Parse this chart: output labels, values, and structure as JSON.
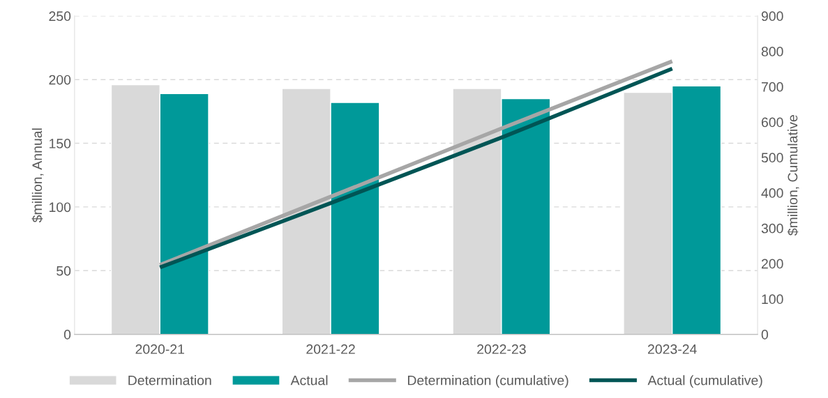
{
  "chart_data": {
    "type": "bar",
    "categories": [
      "2020-21",
      "2021-22",
      "2022-23",
      "2023-24"
    ],
    "ylabel": "$million, Annual",
    "y2label": "$million, Cumulative",
    "series": [
      {
        "name": "Determination",
        "color": "#d9d9d9",
        "values": [
          196,
          193,
          193,
          190
        ]
      },
      {
        "name": "Actual",
        "color": "#009999",
        "values": [
          189,
          182,
          185,
          195
        ]
      },
      {
        "name": "Determination (cumulative)",
        "type": "line",
        "axis": "y2",
        "color": "#a6a6a6",
        "values": [
          196,
          389,
          582,
          772
        ]
      },
      {
        "name": "Actual (cumulative)",
        "type": "line",
        "axis": "y2",
        "color": "#005555",
        "values": [
          189,
          371,
          556,
          751
        ]
      }
    ],
    "ylim": [
      0,
      250
    ],
    "yticks": [
      0,
      50,
      100,
      150,
      200,
      250
    ],
    "y2lim": [
      0,
      900
    ],
    "y2ticks": [
      0,
      100,
      200,
      300,
      400,
      500,
      600,
      700,
      800,
      900
    ],
    "grid": "y",
    "legend": "bottom",
    "marker": "none",
    "line_style": "solid"
  }
}
